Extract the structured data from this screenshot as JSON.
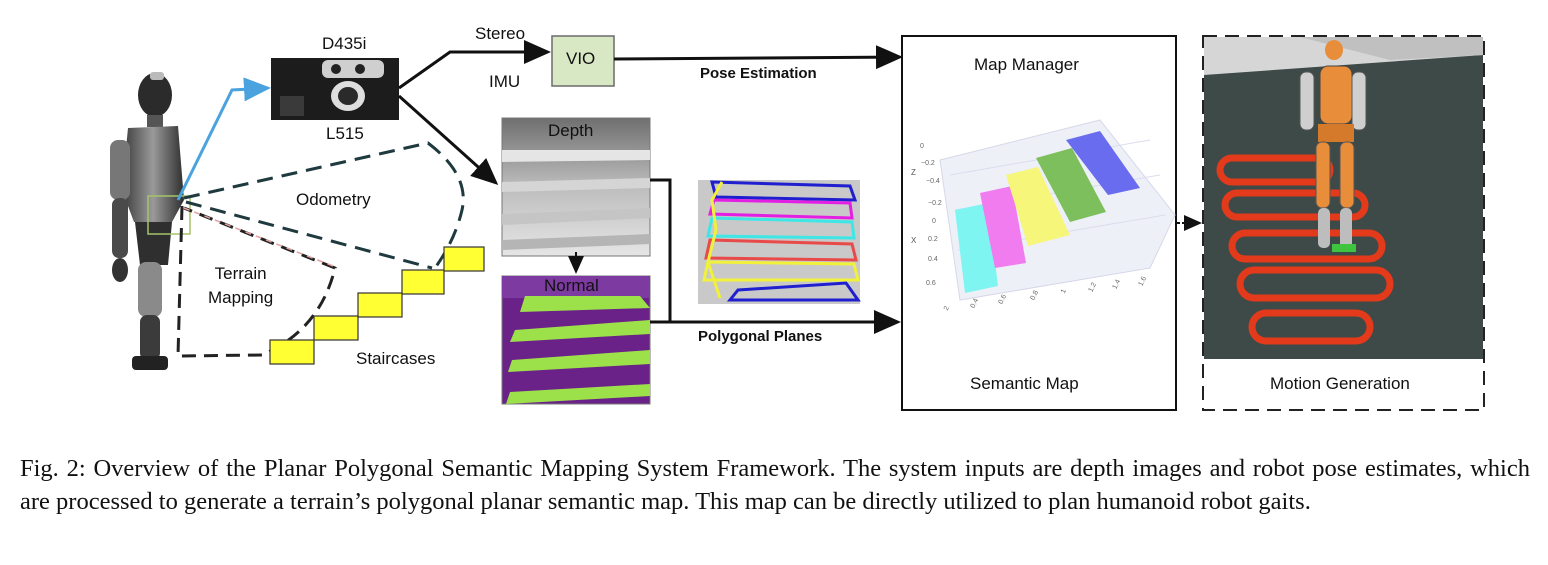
{
  "sensors": {
    "camera_top": "D435i",
    "camera_bottom": "L515",
    "stereo": "Stereo",
    "imu": "IMU",
    "vio": "VIO"
  },
  "labels": {
    "odometry": "Odometry",
    "terrain_mapping": "Terrain\nMapping",
    "staircases": "Staircases",
    "depth": "Depth",
    "normal": "Normal",
    "pose_estimation": "Pose Estimation",
    "polygonal_planes": "Polygonal Planes",
    "map_manager": "Map Manager",
    "semantic_map": "Semantic Map",
    "motion_generation": "Motion Generation"
  },
  "plot_ticks": {
    "z_axis_label": "Z",
    "z_ticks": [
      "0",
      "−0.2",
      "−0.4"
    ],
    "x_axis_label": "X",
    "x_ticks": [
      "−0.2",
      "0",
      "0.2",
      "0.4",
      "0.6"
    ],
    "y_ticks": [
      "2",
      "0.4",
      "0.6",
      "0.8",
      "1",
      "1.2",
      "1.4",
      "1.6"
    ]
  },
  "colors": {
    "vio_fill": "#d9e8c4",
    "odometry_dash": "#1f3a3f",
    "terrain_dash": "#222222",
    "stair_fill": "#ffff33",
    "arrow_blue": "#4aa3df",
    "plane_cyan": "#7ff5f2",
    "plane_magenta": "#f07cf0",
    "plane_yellow": "#f6f67a",
    "plane_green": "#7dbf5c",
    "plane_blue": "#6a6cf0",
    "path_red": "#e33a1c",
    "sim_floor": "#3d4a48"
  },
  "caption": "Fig. 2: Overview of the Planar Polygonal Semantic Mapping System Framework. The system inputs are depth images and robot pose estimates, which are processed to generate a terrain’s polygonal planar semantic map. This map can be directly utilized to plan humanoid robot gaits."
}
